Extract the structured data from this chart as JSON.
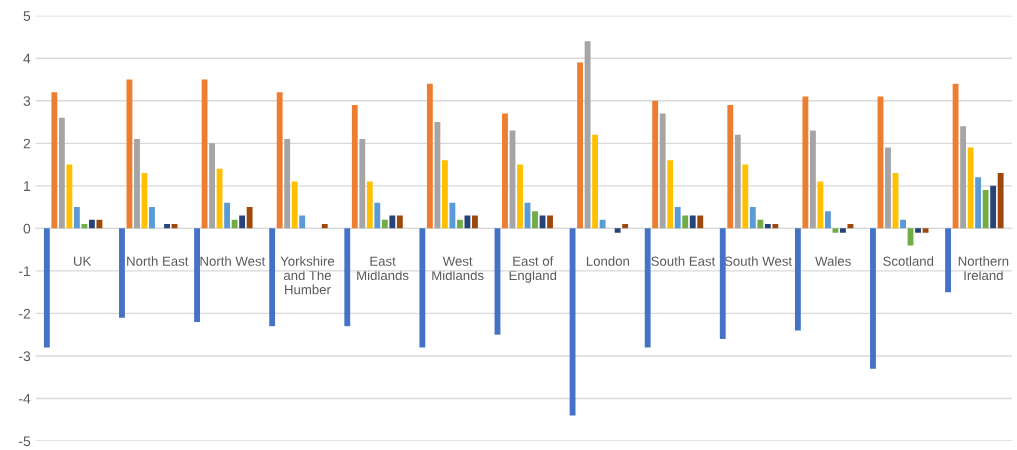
{
  "chart_data": {
    "type": "bar",
    "categories": [
      "UK",
      "North East",
      "North West",
      "Yorkshire and The Humber",
      "East Midlands",
      "West Midlands",
      "East of England",
      "London",
      "South East",
      "South West",
      "Wales",
      "Scotland",
      "Northern Ireland"
    ],
    "series": [
      {
        "color": "#4472c4",
        "values": [
          -2.8,
          -2.1,
          -2.2,
          -2.3,
          -2.3,
          -2.8,
          -2.5,
          -4.4,
          -2.8,
          -2.6,
          -2.4,
          -3.3,
          -1.5
        ]
      },
      {
        "color": "#ed7d31",
        "values": [
          3.2,
          3.5,
          3.5,
          3.2,
          2.9,
          3.4,
          2.7,
          3.9,
          3.0,
          2.9,
          3.1,
          3.1,
          3.4
        ]
      },
      {
        "color": "#a5a5a5",
        "values": [
          2.6,
          2.1,
          2.0,
          2.1,
          2.1,
          2.5,
          2.3,
          4.4,
          2.7,
          2.2,
          2.3,
          1.9,
          2.4
        ]
      },
      {
        "color": "#ffc000",
        "values": [
          1.5,
          1.3,
          1.4,
          1.1,
          1.1,
          1.6,
          1.5,
          2.2,
          1.6,
          1.5,
          1.1,
          1.3,
          1.9
        ]
      },
      {
        "color": "#5b9bd5",
        "values": [
          0.5,
          0.5,
          0.6,
          0.3,
          0.6,
          0.6,
          0.6,
          0.2,
          0.5,
          0.5,
          0.4,
          0.2,
          1.2
        ]
      },
      {
        "color": "#70ad47",
        "values": [
          0.1,
          0,
          0.2,
          0,
          0.2,
          0.2,
          0.4,
          0,
          0.3,
          0.2,
          -0.1,
          -0.4,
          0.9
        ]
      },
      {
        "color": "#264478",
        "values": [
          0.2,
          0.1,
          0.3,
          0,
          0.3,
          0.3,
          0.3,
          -0.1,
          0.3,
          0.1,
          -0.1,
          -0.1,
          1.0
        ]
      },
      {
        "color": "#9e480e",
        "values": [
          0.2,
          0.1,
          0.5,
          0.1,
          0.3,
          0.3,
          0.3,
          0.1,
          0.3,
          0.1,
          0.1,
          -0.1,
          1.3
        ]
      }
    ],
    "ylim": [
      -5,
      5
    ],
    "yticks": [
      -5,
      -4,
      -3,
      -2,
      -1,
      0,
      1,
      2,
      3,
      4,
      5
    ],
    "grid": "y"
  }
}
